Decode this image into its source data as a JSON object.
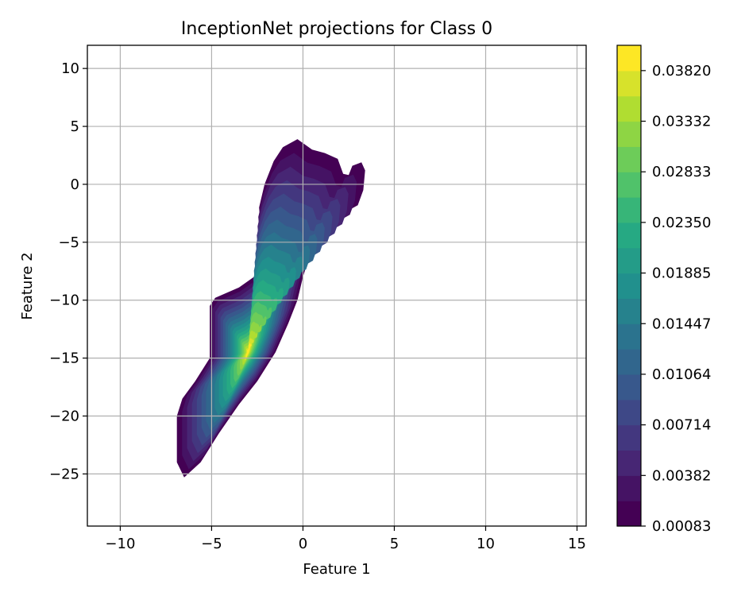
{
  "chart_data": {
    "type": "contour",
    "title": "InceptionNet projections for Class 0",
    "xlabel": "Feature 1",
    "ylabel": "Feature 2",
    "xlim": [
      -11.8,
      15.5
    ],
    "ylim": [
      -29.5,
      12.0
    ],
    "xticks": [
      -10,
      -5,
      0,
      5,
      10,
      15
    ],
    "yticks": [
      -25,
      -20,
      -15,
      -10,
      -5,
      0,
      5,
      10
    ],
    "xtick_labels": [
      "−10",
      "−5",
      "0",
      "5",
      "10",
      "15"
    ],
    "ytick_labels": [
      "−25",
      "−20",
      "−15",
      "−10",
      "−5",
      "0",
      "5",
      "10"
    ],
    "grid": true,
    "colormap": "viridis",
    "density_peak": {
      "x": -3.0,
      "y": -14.5
    },
    "colorbar": {
      "tick_labels": [
        "0.00083",
        "0.00382",
        "0.00714",
        "0.01064",
        "0.01447",
        "0.01885",
        "0.02350",
        "0.02833",
        "0.03332",
        "0.03820"
      ],
      "min": 0.00083,
      "max": 0.041,
      "levels": 19
    }
  }
}
